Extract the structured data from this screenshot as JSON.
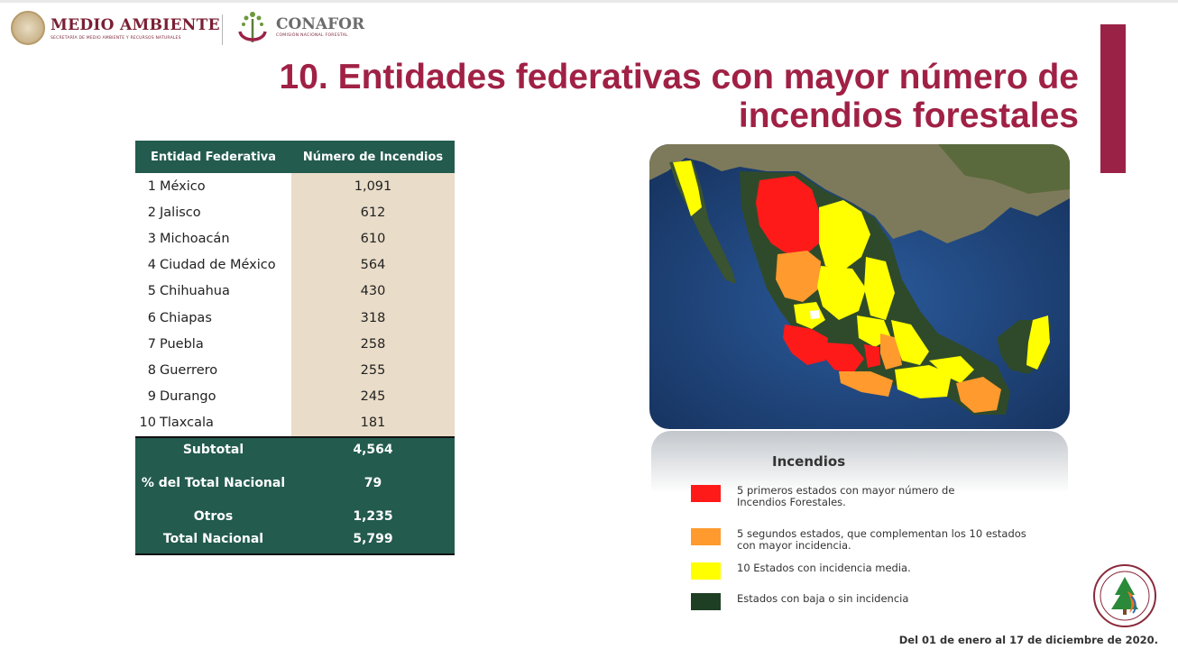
{
  "header": {
    "logo_main": "MEDIO AMBIENTE",
    "logo_main_sub": "SECRETARÍA DE MEDIO AMBIENTE Y RECURSOS NATURALES",
    "logo_conafor": "CONAFOR",
    "logo_conafor_sub": "COMISIÓN NACIONAL FORESTAL"
  },
  "title_line1": "10. Entidades federativas con mayor número de",
  "title_line2": "incendios forestales",
  "table": {
    "col1": "Entidad Federativa",
    "col2": "Número de Incendios",
    "rows": [
      {
        "rank": "1",
        "name": "México",
        "value": "1,091"
      },
      {
        "rank": "2",
        "name": "Jalisco",
        "value": "612"
      },
      {
        "rank": "3",
        "name": "Michoacán",
        "value": "610"
      },
      {
        "rank": "4",
        "name": "Ciudad de México",
        "value": "564"
      },
      {
        "rank": "5",
        "name": "Chihuahua",
        "value": "430"
      },
      {
        "rank": "6",
        "name": "Chiapas",
        "value": "318"
      },
      {
        "rank": "7",
        "name": "Puebla",
        "value": "258"
      },
      {
        "rank": "8",
        "name": "Guerrero",
        "value": "255"
      },
      {
        "rank": "9",
        "name": "Durango",
        "value": "245"
      },
      {
        "rank": "10",
        "name": "Tlaxcala",
        "value": "181"
      }
    ],
    "footer": [
      {
        "label": "Subtotal",
        "value": "4,564"
      },
      {
        "label": "% del Total Nacional",
        "value": "79"
      },
      {
        "label": "Otros",
        "value": "1,235"
      },
      {
        "label": "Total Nacional",
        "value": "5,799"
      }
    ]
  },
  "legend": {
    "title": "Incendios",
    "items": [
      {
        "color": "#ff1a1a",
        "text": "5 primeros estados con mayor número de Incendios Forestales."
      },
      {
        "color": "#ff9a2e",
        "text": "5 segundos estados, que complementan los 10 estados con mayor incidencia."
      },
      {
        "color": "#ffff00",
        "text": "10 Estados con incidencia media."
      },
      {
        "color": "#1f3f24",
        "text": "Estados con baja o sin incidencia"
      }
    ]
  },
  "date_range": "Del 01 de enero al 17 de diciembre de 2020.",
  "colors": {
    "title": "#a02145",
    "accent_bar": "#9b2247",
    "table_green": "#235b4e",
    "table_beige": "#e9dcc8"
  },
  "icons": [
    "semarnat-seal-icon",
    "conafor-tree-icon",
    "mexico-seal-icon"
  ]
}
